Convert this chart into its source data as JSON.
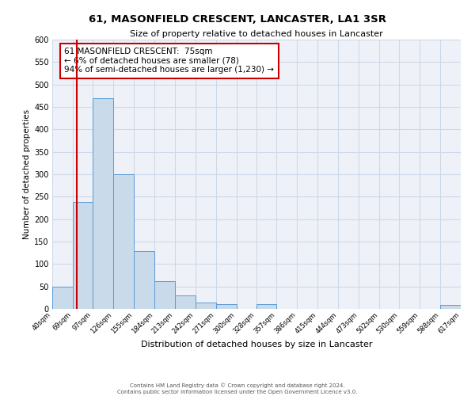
{
  "title": "61, MASONFIELD CRESCENT, LANCASTER, LA1 3SR",
  "subtitle": "Size of property relative to detached houses in Lancaster",
  "xlabel": "Distribution of detached houses by size in Lancaster",
  "ylabel": "Number of detached properties",
  "bin_edges": [
    40,
    69,
    97,
    126,
    155,
    184,
    213,
    242,
    271,
    300,
    328,
    357,
    386,
    415,
    444,
    473,
    502,
    530,
    559,
    588,
    617
  ],
  "bin_counts": [
    50,
    238,
    470,
    300,
    128,
    62,
    30,
    15,
    10,
    0,
    10,
    0,
    0,
    0,
    0,
    0,
    0,
    0,
    0,
    8
  ],
  "bar_facecolor": "#c9daea",
  "bar_edgecolor": "#5b9bd5",
  "grid_color": "#cdd8e8",
  "background_color": "#eef2f8",
  "property_line_x": 75,
  "property_line_color": "#cc0000",
  "annotation_line1": "61 MASONFIELD CRESCENT:  75sqm",
  "annotation_line2": "← 6% of detached houses are smaller (78)",
  "annotation_line3": "94% of semi-detached houses are larger (1,230) →",
  "annotation_box_edgecolor": "#cc0000",
  "ylim": [
    0,
    600
  ],
  "yticks": [
    0,
    50,
    100,
    150,
    200,
    250,
    300,
    350,
    400,
    450,
    500,
    550,
    600
  ],
  "footer1": "Contains HM Land Registry data © Crown copyright and database right 2024.",
  "footer2": "Contains public sector information licensed under the Open Government Licence v3.0.",
  "tick_labels": [
    "40sqm",
    "69sqm",
    "97sqm",
    "126sqm",
    "155sqm",
    "184sqm",
    "213sqm",
    "242sqm",
    "271sqm",
    "300sqm",
    "328sqm",
    "357sqm",
    "386sqm",
    "415sqm",
    "444sqm",
    "473sqm",
    "502sqm",
    "530sqm",
    "559sqm",
    "588sqm",
    "617sqm"
  ]
}
